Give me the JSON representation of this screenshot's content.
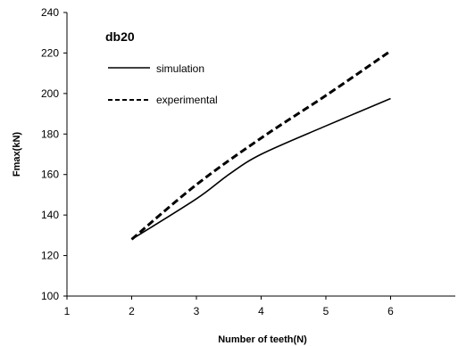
{
  "chart_data": {
    "type": "line",
    "title": "db20",
    "xlabel": "Number of teeth(N)",
    "ylabel": "Fmax(kN)",
    "xlim": [
      1,
      7
    ],
    "ylim": [
      100,
      240
    ],
    "x_ticks": [
      "1",
      "2",
      "3",
      "4",
      "5",
      "6"
    ],
    "y_ticks": [
      "100",
      "120",
      "140",
      "160",
      "180",
      "200",
      "220",
      "240"
    ],
    "legend_position": "top-left",
    "series": [
      {
        "name": "simulation",
        "style": "solid",
        "color": "#000000",
        "x": [
          2,
          3,
          3.5,
          4,
          5,
          6
        ],
        "y": [
          128,
          148,
          160,
          170,
          184,
          197.5
        ]
      },
      {
        "name": "experimental",
        "style": "dashed",
        "color": "#000000",
        "x": [
          2,
          3,
          4,
          5,
          6
        ],
        "y": [
          128,
          155,
          178,
          199,
          221
        ]
      }
    ]
  }
}
